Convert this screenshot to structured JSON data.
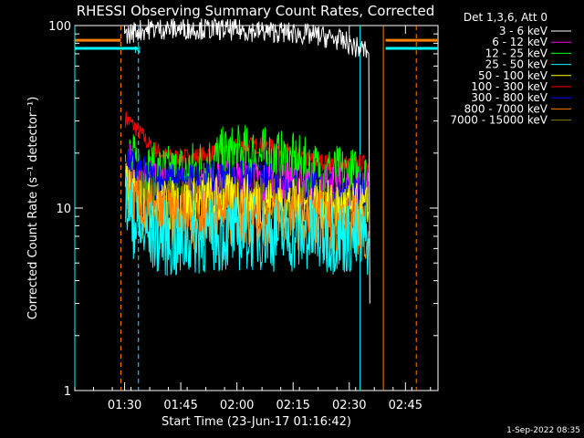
{
  "chart_data": {
    "type": "line",
    "title": "RHESSI Observing Summary Count Rates, Corrected",
    "xlabel": "Start Time (23-Jun-17 01:16:42)",
    "ylabel": "Corrected Count Rate (s⁻¹ detector⁻¹)",
    "yscale": "log",
    "ylim": [
      1,
      100
    ],
    "xlim_min_after_start": [
      0,
      97
    ],
    "x_ticks": [
      {
        "label": "01:30",
        "t": 13.3
      },
      {
        "label": "01:45",
        "t": 28.3
      },
      {
        "label": "02:00",
        "t": 43.3
      },
      {
        "label": "02:15",
        "t": 58.3
      },
      {
        "label": "02:30",
        "t": 73.3
      },
      {
        "label": "02:45",
        "t": 88.3
      }
    ],
    "y_ticks": [
      {
        "label": "1",
        "v": 1
      },
      {
        "label": "10",
        "v": 10
      },
      {
        "label": "100",
        "v": 100
      }
    ],
    "legend_title": "Det 1,3,6, Att 0",
    "legend_placement": "outside-right",
    "series": [
      {
        "name": "3 - 6 keV",
        "color": "#ffffff",
        "points": [
          [
            13.5,
            88
          ],
          [
            16,
            93
          ],
          [
            20,
            96
          ],
          [
            25,
            96
          ],
          [
            30,
            96
          ],
          [
            35,
            96
          ],
          [
            40,
            95
          ],
          [
            45,
            94
          ],
          [
            50,
            93
          ],
          [
            55,
            92
          ],
          [
            60,
            90
          ],
          [
            65,
            88
          ],
          [
            70,
            84
          ],
          [
            73,
            80
          ],
          [
            75,
            76
          ],
          [
            78,
            73
          ],
          [
            78.5,
            70
          ],
          [
            78.8,
            3
          ]
        ]
      },
      {
        "name": "6 - 12 keV",
        "color": "#ff00ff",
        "points": [
          [
            13.5,
            18
          ],
          [
            16,
            15
          ],
          [
            20,
            13.5
          ],
          [
            25,
            13
          ],
          [
            30,
            12.8
          ],
          [
            35,
            13
          ],
          [
            40,
            13.5
          ],
          [
            45,
            13.5
          ],
          [
            50,
            13.5
          ],
          [
            55,
            13
          ],
          [
            60,
            12.8
          ],
          [
            65,
            12.5
          ],
          [
            70,
            12.3
          ],
          [
            75,
            12
          ],
          [
            78.5,
            12
          ]
        ]
      },
      {
        "name": "12 - 25 keV",
        "color": "#00ff00",
        "points": [
          [
            13.5,
            20
          ],
          [
            16,
            17
          ],
          [
            20,
            15.5
          ],
          [
            25,
            15
          ],
          [
            30,
            15.5
          ],
          [
            35,
            17
          ],
          [
            40,
            19
          ],
          [
            45,
            19.5
          ],
          [
            50,
            19
          ],
          [
            55,
            18
          ],
          [
            60,
            17
          ],
          [
            65,
            15.5
          ],
          [
            70,
            15
          ],
          [
            75,
            14.5
          ],
          [
            78.5,
            14
          ]
        ]
      },
      {
        "name": "25 - 50 keV",
        "color": "#00ffff",
        "points": [
          [
            13.5,
            11
          ],
          [
            15,
            9
          ],
          [
            17,
            7.5
          ],
          [
            20,
            7
          ],
          [
            25,
            6.8
          ],
          [
            28,
            6
          ],
          [
            30,
            6.8
          ],
          [
            35,
            7
          ],
          [
            40,
            7.2
          ],
          [
            45,
            7.3
          ],
          [
            50,
            7.3
          ],
          [
            55,
            7.2
          ],
          [
            60,
            7
          ],
          [
            65,
            7
          ],
          [
            70,
            7
          ],
          [
            75,
            6.8
          ],
          [
            78.5,
            6.8
          ]
        ]
      },
      {
        "name": "50 - 100 keV",
        "color": "#ffff00",
        "points": [
          [
            13.5,
            13
          ],
          [
            16,
            11.5
          ],
          [
            20,
            10.5
          ],
          [
            25,
            10.2
          ],
          [
            30,
            10.5
          ],
          [
            35,
            10.8
          ],
          [
            40,
            11
          ],
          [
            45,
            11
          ],
          [
            50,
            10.8
          ],
          [
            55,
            10.5
          ],
          [
            60,
            10.3
          ],
          [
            65,
            10.2
          ],
          [
            70,
            10
          ],
          [
            75,
            9.8
          ],
          [
            78.5,
            9.5
          ]
        ]
      },
      {
        "name": "100 - 300 keV",
        "color": "#ff0000",
        "points": [
          [
            13.5,
            31
          ],
          [
            16,
            28
          ],
          [
            18,
            25
          ],
          [
            20,
            22
          ],
          [
            23,
            20
          ],
          [
            25,
            19
          ],
          [
            30,
            19
          ],
          [
            35,
            19.5
          ],
          [
            40,
            21
          ],
          [
            45,
            22
          ],
          [
            50,
            22
          ],
          [
            55,
            21
          ],
          [
            60,
            19
          ],
          [
            65,
            18
          ],
          [
            70,
            17.5
          ],
          [
            75,
            17.5
          ],
          [
            78.5,
            17.5
          ]
        ]
      },
      {
        "name": "300 - 800 keV",
        "color": "#0000ff",
        "points": [
          [
            13.5,
            19
          ],
          [
            16,
            16
          ],
          [
            20,
            14.5
          ],
          [
            25,
            13.8
          ],
          [
            30,
            13.8
          ],
          [
            35,
            14
          ],
          [
            40,
            14.2
          ],
          [
            45,
            14.2
          ],
          [
            50,
            14
          ],
          [
            55,
            13.5
          ],
          [
            60,
            13
          ],
          [
            65,
            12.5
          ],
          [
            70,
            12
          ],
          [
            75,
            11.5
          ],
          [
            78.5,
            11.5
          ]
        ]
      },
      {
        "name": "800 - 7000 keV",
        "color": "#ff7f00",
        "points": [
          [
            13.5,
            12
          ],
          [
            16,
            10
          ],
          [
            20,
            9
          ],
          [
            25,
            8.7
          ],
          [
            30,
            8.8
          ],
          [
            35,
            9
          ],
          [
            40,
            9.2
          ],
          [
            45,
            9.2
          ],
          [
            50,
            9
          ],
          [
            55,
            8.8
          ],
          [
            60,
            8.7
          ],
          [
            65,
            8.5
          ],
          [
            70,
            8.2
          ],
          [
            75,
            8
          ],
          [
            78.5,
            7.5
          ]
        ]
      },
      {
        "name": "7000 - 15000 keV",
        "color": "#808000",
        "points": [
          [
            13.5,
            14
          ],
          [
            16,
            12
          ],
          [
            20,
            11
          ],
          [
            25,
            10.6
          ],
          [
            30,
            10.6
          ],
          [
            35,
            10.8
          ],
          [
            40,
            11
          ],
          [
            45,
            11
          ],
          [
            50,
            10.8
          ],
          [
            55,
            10.5
          ],
          [
            60,
            10.3
          ],
          [
            65,
            10.2
          ],
          [
            70,
            10
          ],
          [
            75,
            9.8
          ],
          [
            78.5,
            9.5
          ]
        ]
      }
    ],
    "annotations": [
      {
        "text": "N",
        "t": 15.8,
        "v": 74,
        "color": "#00ffff"
      }
    ],
    "markers": [
      {
        "kind": "orange-bar",
        "color": "#ff7f00",
        "start": 0,
        "end": 12.3,
        "v": 83
      },
      {
        "kind": "orange-bar",
        "color": "#ff7f00",
        "start": 83,
        "end": 97,
        "v": 83
      },
      {
        "kind": "cyan-bar",
        "color": "#00ffff",
        "start": 0,
        "end": 17,
        "v": 75
      },
      {
        "kind": "cyan-bar",
        "color": "#00ffff",
        "start": 83,
        "end": 97,
        "v": 75
      },
      {
        "kind": "vline",
        "color": "#00ffff",
        "t": 0,
        "dashed": false
      },
      {
        "kind": "vline",
        "color": "#ff7f00",
        "t": 12.3,
        "dashed": true
      },
      {
        "kind": "vline",
        "color": "#00ffff",
        "t": 17,
        "dashed": true
      },
      {
        "kind": "vline",
        "color": "#00ffff",
        "t": 76.2,
        "dashed": false
      },
      {
        "kind": "vline",
        "color": "#ff7f00",
        "t": 82.4,
        "dashed": false
      },
      {
        "kind": "vline",
        "color": "#ff7f00",
        "t": 91.2,
        "dashed": true
      }
    ]
  },
  "footer": {
    "timestamp": "1-Sep-2022 08:35"
  }
}
